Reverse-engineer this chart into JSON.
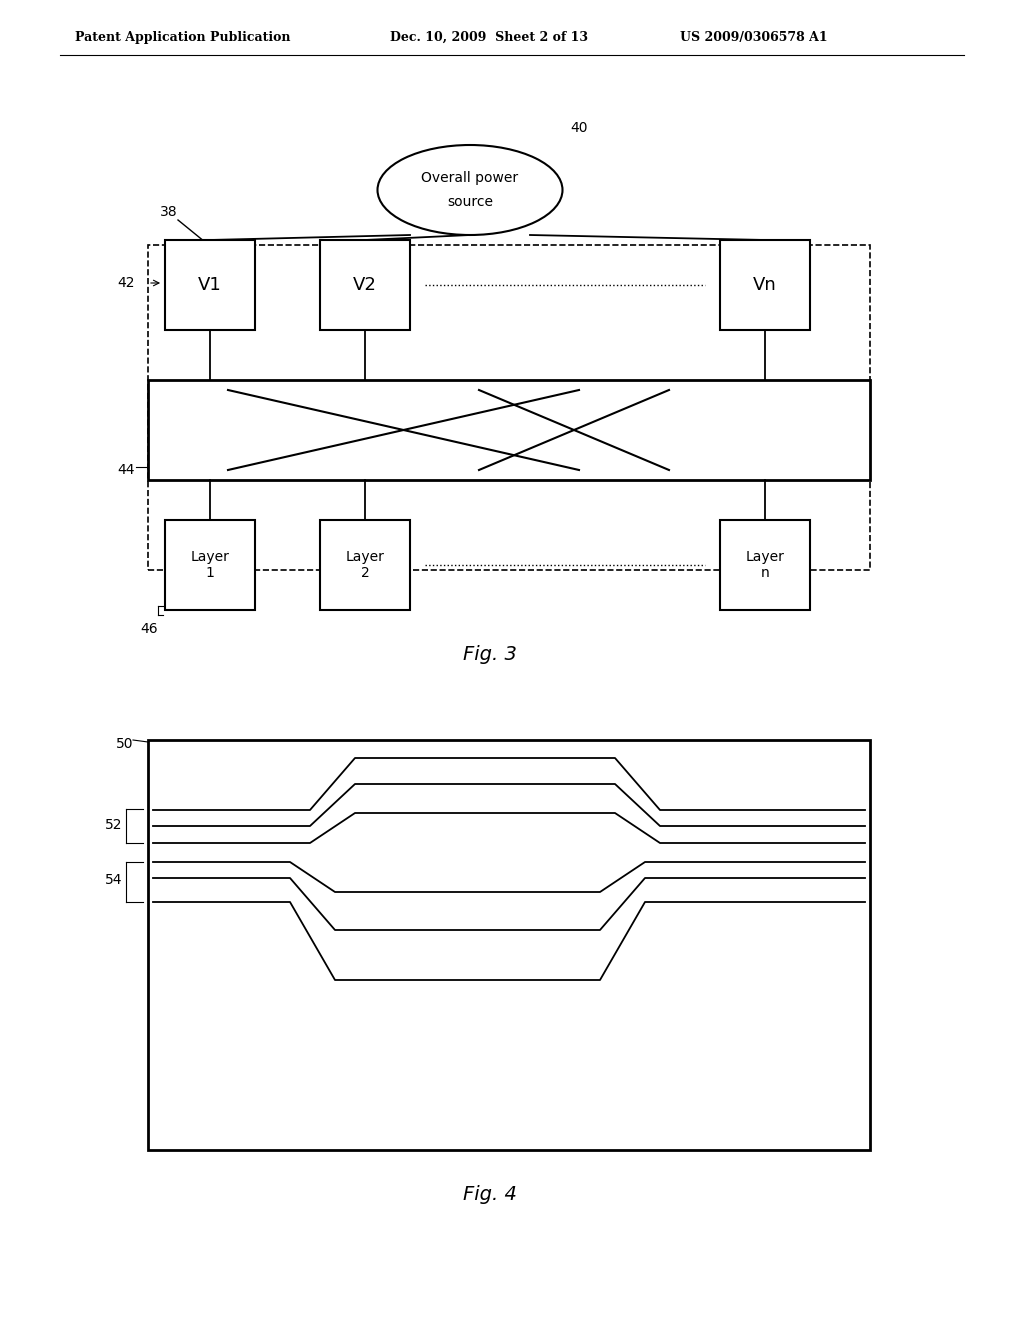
{
  "bg_color": "#ffffff",
  "line_color": "#000000",
  "header_left": "Patent Application Publication",
  "header_mid": "Dec. 10, 2009  Sheet 2 of 13",
  "header_right": "US 2009/0306578 A1",
  "fig3_label": "Fig. 3",
  "fig4_label": "Fig. 4",
  "ellipse_text_line1": "Overall power",
  "ellipse_text_line2": "source",
  "v_boxes": [
    "V1",
    "V2",
    "Vn"
  ],
  "layer_boxes": [
    "Layer\n1",
    "Layer\n2",
    "Layer\nn"
  ],
  "label_38": "38",
  "label_40": "40",
  "label_42": "42",
  "label_44": "44",
  "label_46": "46",
  "label_50": "50",
  "label_52": "52",
  "label_54": "54"
}
